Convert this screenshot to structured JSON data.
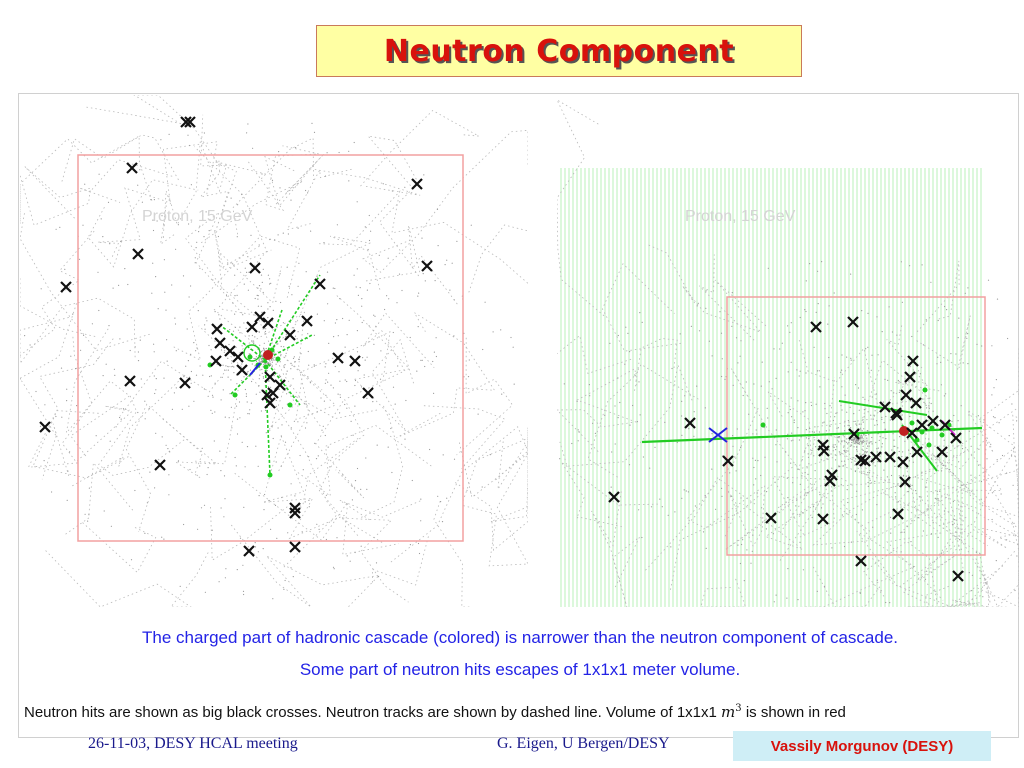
{
  "title": "Neutron Component",
  "panels": {
    "left": {
      "label": "Proton,  15 GeV"
    },
    "right": {
      "label": "Proton,  15 GeV"
    }
  },
  "captions": {
    "line1": "The charged part of hadronic cascade (colored) is narrower than the neutron component of cascade.",
    "line2": "Some part of neutron hits escapes of 1x1x1 meter volume."
  },
  "legend": {
    "prefix": "Neutron hits are shown as big black crosses. Neutron tracks are shown by dashed line. Volume of 1x1x1",
    "math": "m",
    "exponent": "3",
    "suffix": "is shown in red"
  },
  "footer": {
    "left": "26-11-03, DESY HCAL meeting",
    "middle": "G. Eigen,  U Bergen/DESY",
    "right": "Vassily Morgunov (DESY)"
  },
  "colors": {
    "title_text": "#d8120c",
    "title_bg": "#ffffa3",
    "caption": "#2323e6",
    "volume_box": "#f2a0a0",
    "neutron_cross": "#111111",
    "charged_track": "#22cc22",
    "stripes": "#c9f3c9",
    "footer_badge_bg": "#cfeef6",
    "footer_badge_text": "#d8120c"
  }
}
